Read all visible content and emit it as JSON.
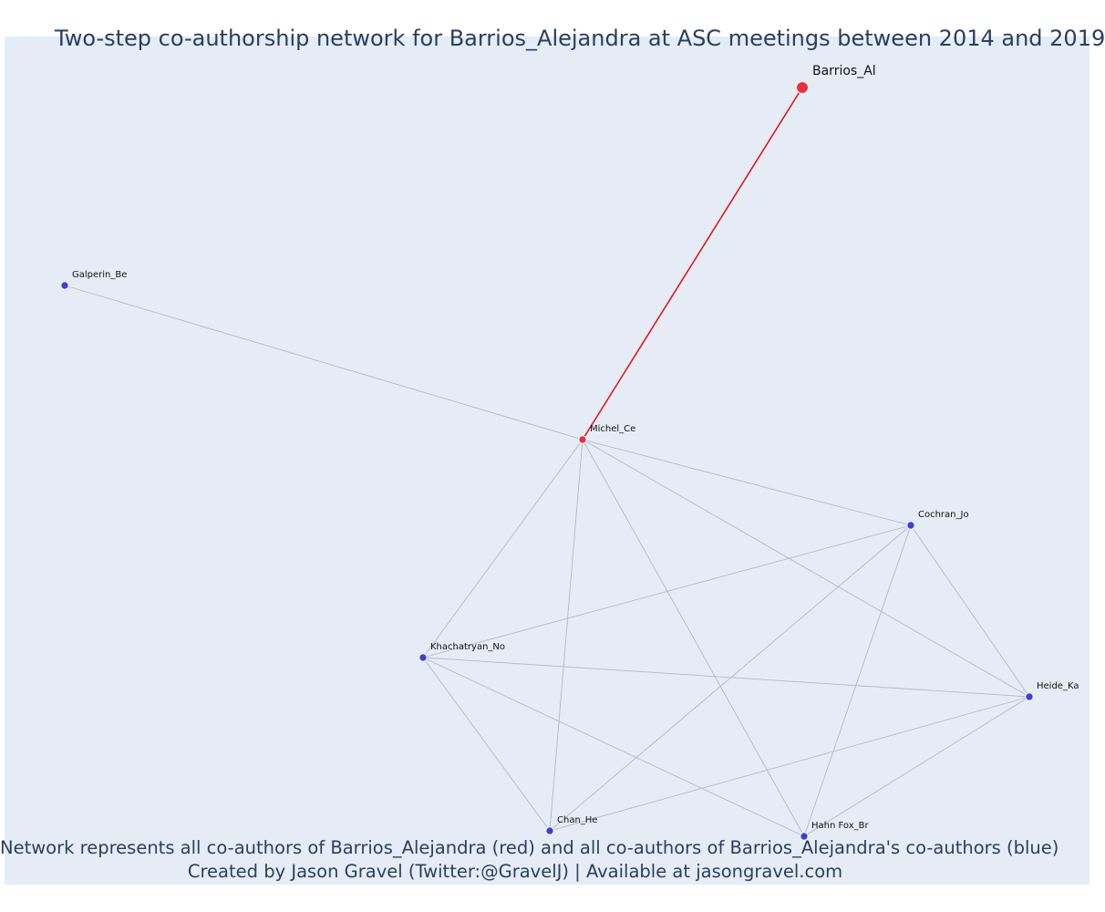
{
  "title": "Two-step co-authorship network for Barrios_Alejandra at ASC meetings between 2014 and 2019",
  "footer": {
    "line1": "Network represents all co-authors of Barrios_Alejandra (red) and all co-authors of Barrios_Alejandra's co-authors (blue)",
    "line2": "Created by Jason Gravel (Twitter:@GravelJ) | Available at jasongravel.com"
  },
  "colors": {
    "background": "#e5ecf6",
    "ego_edge": "#e0181b",
    "edge": "#b4b8c8",
    "ego_node": "#e8333a",
    "first_step_node": "#e8333a",
    "second_step_node": "#3b3fe0"
  },
  "nodes": [
    {
      "id": "barrios",
      "label": "Barrios_Al",
      "group": "ego"
    },
    {
      "id": "michel",
      "label": "Michel_Ce",
      "group": "first_step"
    },
    {
      "id": "galperin",
      "label": "Galperin_Be",
      "group": "second_step"
    },
    {
      "id": "cochran",
      "label": "Cochran_Jo",
      "group": "second_step"
    },
    {
      "id": "khachatryan",
      "label": "Khachatryan_No",
      "group": "second_step"
    },
    {
      "id": "heide",
      "label": "Heide_Ka",
      "group": "second_step"
    },
    {
      "id": "chan",
      "label": "Chan_He",
      "group": "second_step"
    },
    {
      "id": "hahnfox",
      "label": "Hahn Fox_Br",
      "group": "second_step"
    }
  ],
  "edges": [
    {
      "source": "barrios",
      "target": "michel",
      "highlight": true
    },
    {
      "source": "michel",
      "target": "galperin"
    },
    {
      "source": "michel",
      "target": "cochran"
    },
    {
      "source": "michel",
      "target": "khachatryan"
    },
    {
      "source": "michel",
      "target": "heide"
    },
    {
      "source": "michel",
      "target": "chan"
    },
    {
      "source": "michel",
      "target": "hahnfox"
    },
    {
      "source": "cochran",
      "target": "khachatryan"
    },
    {
      "source": "cochran",
      "target": "heide"
    },
    {
      "source": "cochran",
      "target": "chan"
    },
    {
      "source": "cochran",
      "target": "hahnfox"
    },
    {
      "source": "khachatryan",
      "target": "heide"
    },
    {
      "source": "khachatryan",
      "target": "chan"
    },
    {
      "source": "khachatryan",
      "target": "hahnfox"
    },
    {
      "source": "heide",
      "target": "chan"
    },
    {
      "source": "heide",
      "target": "hahnfox"
    }
  ]
}
